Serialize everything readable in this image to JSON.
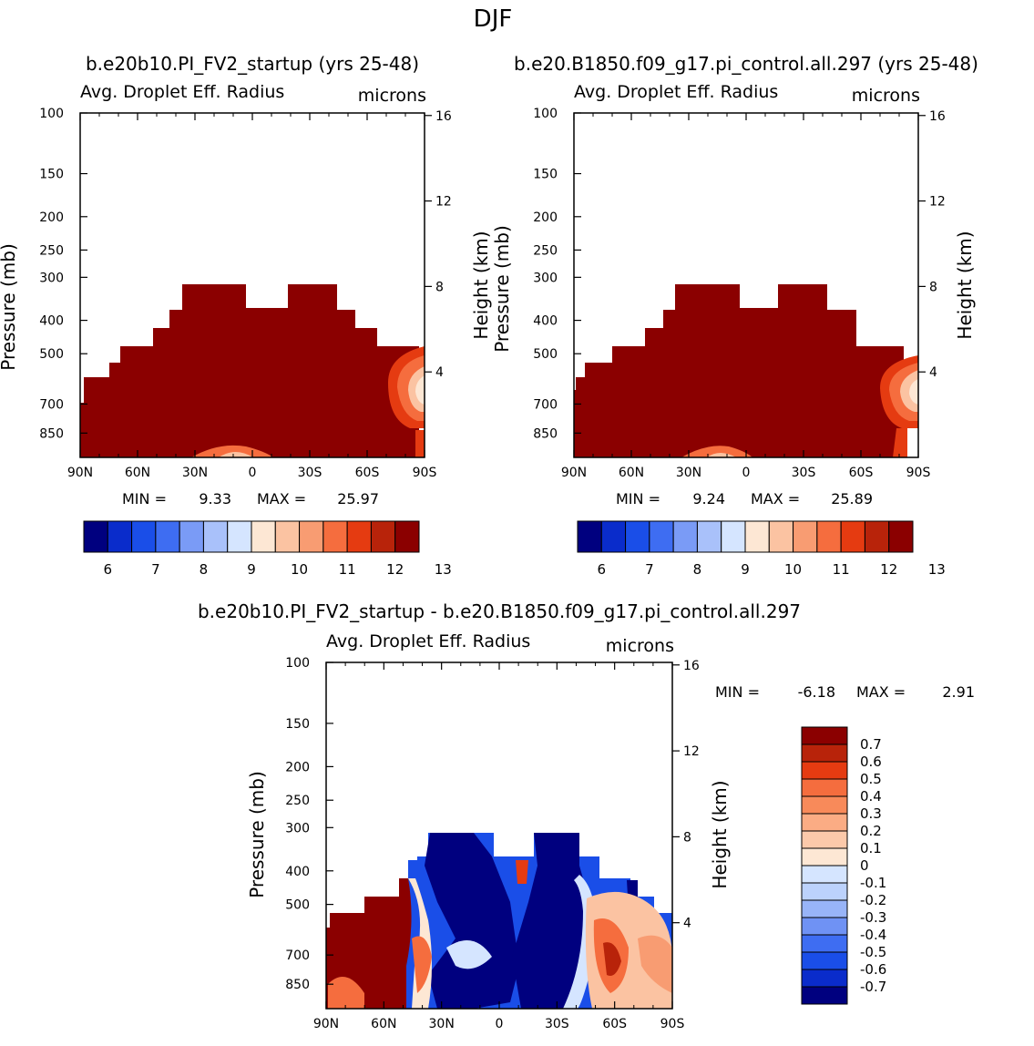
{
  "figure": {
    "season": "DJF",
    "top_left_case": "b.e20b10.PI_FV2_startup (yrs 25-48)",
    "top_right_case": "b.e20.B1850.f09_g17.pi_control.all.297 (yrs 25-48)",
    "diff_title": "b.e20b10.PI_FV2_startup - b.e20.B1850.f09_g17.pi_control.all.297"
  },
  "chart_data": [
    {
      "id": "panel-case1",
      "type": "heatmap",
      "title": "Avg. Droplet Eff. Radius",
      "units": "microns",
      "xlabel": "",
      "ylabel_left": "Pressure (mb)",
      "ylabel_right": "Height (km)",
      "x_ticks": [
        "90N",
        "60N",
        "30N",
        "0",
        "30S",
        "60S",
        "90S"
      ],
      "y_ticks_pressure": [
        100,
        150,
        200,
        250,
        300,
        400,
        500,
        700,
        850
      ],
      "y_ticks_height": [
        16,
        12,
        8,
        4
      ],
      "ylim_mb": [
        100,
        1000
      ],
      "stats": {
        "min_label": "MIN =",
        "min": "9.33",
        "max_label": "MAX =",
        "max": "25.97"
      },
      "colorbar": {
        "labels": [
          "6",
          "7",
          "8",
          "9",
          "10",
          "11",
          "12",
          "13"
        ],
        "colors": [
          "#00007f",
          "#0a2ccb",
          "#1a4ee8",
          "#3e6df2",
          "#7a9bf6",
          "#a9c1fa",
          "#d5e5ff",
          "#fde7d4",
          "#fbc3a2",
          "#f89c72",
          "#f56d3e",
          "#e53b11",
          "#b8230a",
          "#8b0000"
        ]
      },
      "cloud_top_by_lat": [
        {
          "lat": "90N-80N",
          "top_mb": 660
        },
        {
          "lat": "80N-70N",
          "top_mb": 540
        },
        {
          "lat": "70N-60N",
          "top_mb": 500
        },
        {
          "lat": "60N-50N",
          "top_mb": 460
        },
        {
          "lat": "50N-40N",
          "top_mb": 420
        },
        {
          "lat": "40N-30N",
          "top_mb": 350
        },
        {
          "lat": "30N-0",
          "top_mb": 300
        },
        {
          "lat": "0-20S",
          "top_mb": 330
        },
        {
          "lat": "20S-40S",
          "top_mb": 300
        },
        {
          "lat": "40S-60S",
          "top_mb": 330
        },
        {
          "lat": "60S-70S",
          "top_mb": 380
        },
        {
          "lat": "70S-90S",
          "top_mb": 460
        }
      ]
    },
    {
      "id": "panel-case2",
      "type": "heatmap",
      "title": "Avg. Droplet Eff. Radius",
      "units": "microns",
      "xlabel": "",
      "ylabel_left": "Pressure (mb)",
      "ylabel_right": "Height (km)",
      "x_ticks": [
        "90N",
        "60N",
        "30N",
        "0",
        "30S",
        "60S",
        "90S"
      ],
      "y_ticks_pressure": [
        100,
        150,
        200,
        250,
        300,
        400,
        500,
        700,
        850
      ],
      "y_ticks_height": [
        16,
        12,
        8,
        4
      ],
      "ylim_mb": [
        100,
        1000
      ],
      "stats": {
        "min_label": "MIN =",
        "min": "9.24",
        "max_label": "MAX =",
        "max": "25.89"
      },
      "colorbar": {
        "labels": [
          "6",
          "7",
          "8",
          "9",
          "10",
          "11",
          "12",
          "13"
        ],
        "colors": [
          "#00007f",
          "#0a2ccb",
          "#1a4ee8",
          "#3e6df2",
          "#7a9bf6",
          "#a9c1fa",
          "#d5e5ff",
          "#fde7d4",
          "#fbc3a2",
          "#f89c72",
          "#f56d3e",
          "#e53b11",
          "#b8230a",
          "#8b0000"
        ]
      }
    },
    {
      "id": "panel-diff",
      "type": "heatmap",
      "title": "Avg. Droplet Eff. Radius",
      "units": "microns",
      "xlabel": "",
      "ylabel_left": "Pressure (mb)",
      "ylabel_right": "Height (km)",
      "x_ticks": [
        "90N",
        "60N",
        "30N",
        "0",
        "30S",
        "60S",
        "90S"
      ],
      "y_ticks_pressure": [
        100,
        150,
        200,
        250,
        300,
        400,
        500,
        700,
        850
      ],
      "y_ticks_height": [
        16,
        12,
        8,
        4
      ],
      "ylim_mb": [
        100,
        1000
      ],
      "stats": {
        "min_label": "MIN =",
        "min": "-6.18",
        "max_label": "MAX =",
        "max": "2.91"
      },
      "colorbar": {
        "orientation": "vertical",
        "labels": [
          "0.7",
          "0.6",
          "0.5",
          "0.4",
          "0.3",
          "0.2",
          "0.1",
          "0",
          "-0.1",
          "-0.2",
          "-0.3",
          "-0.4",
          "-0.5",
          "-0.6",
          "-0.7"
        ],
        "colors": [
          "#8b0000",
          "#b8230a",
          "#e53b11",
          "#f56d3e",
          "#f88a5a",
          "#fbac84",
          "#fcc9aa",
          "#fde7d4",
          "#d5e5ff",
          "#bcd2fc",
          "#98b4f8",
          "#6f92f4",
          "#3e6df2",
          "#1a4ee8",
          "#0a2ccb",
          "#00007f"
        ]
      }
    }
  ]
}
